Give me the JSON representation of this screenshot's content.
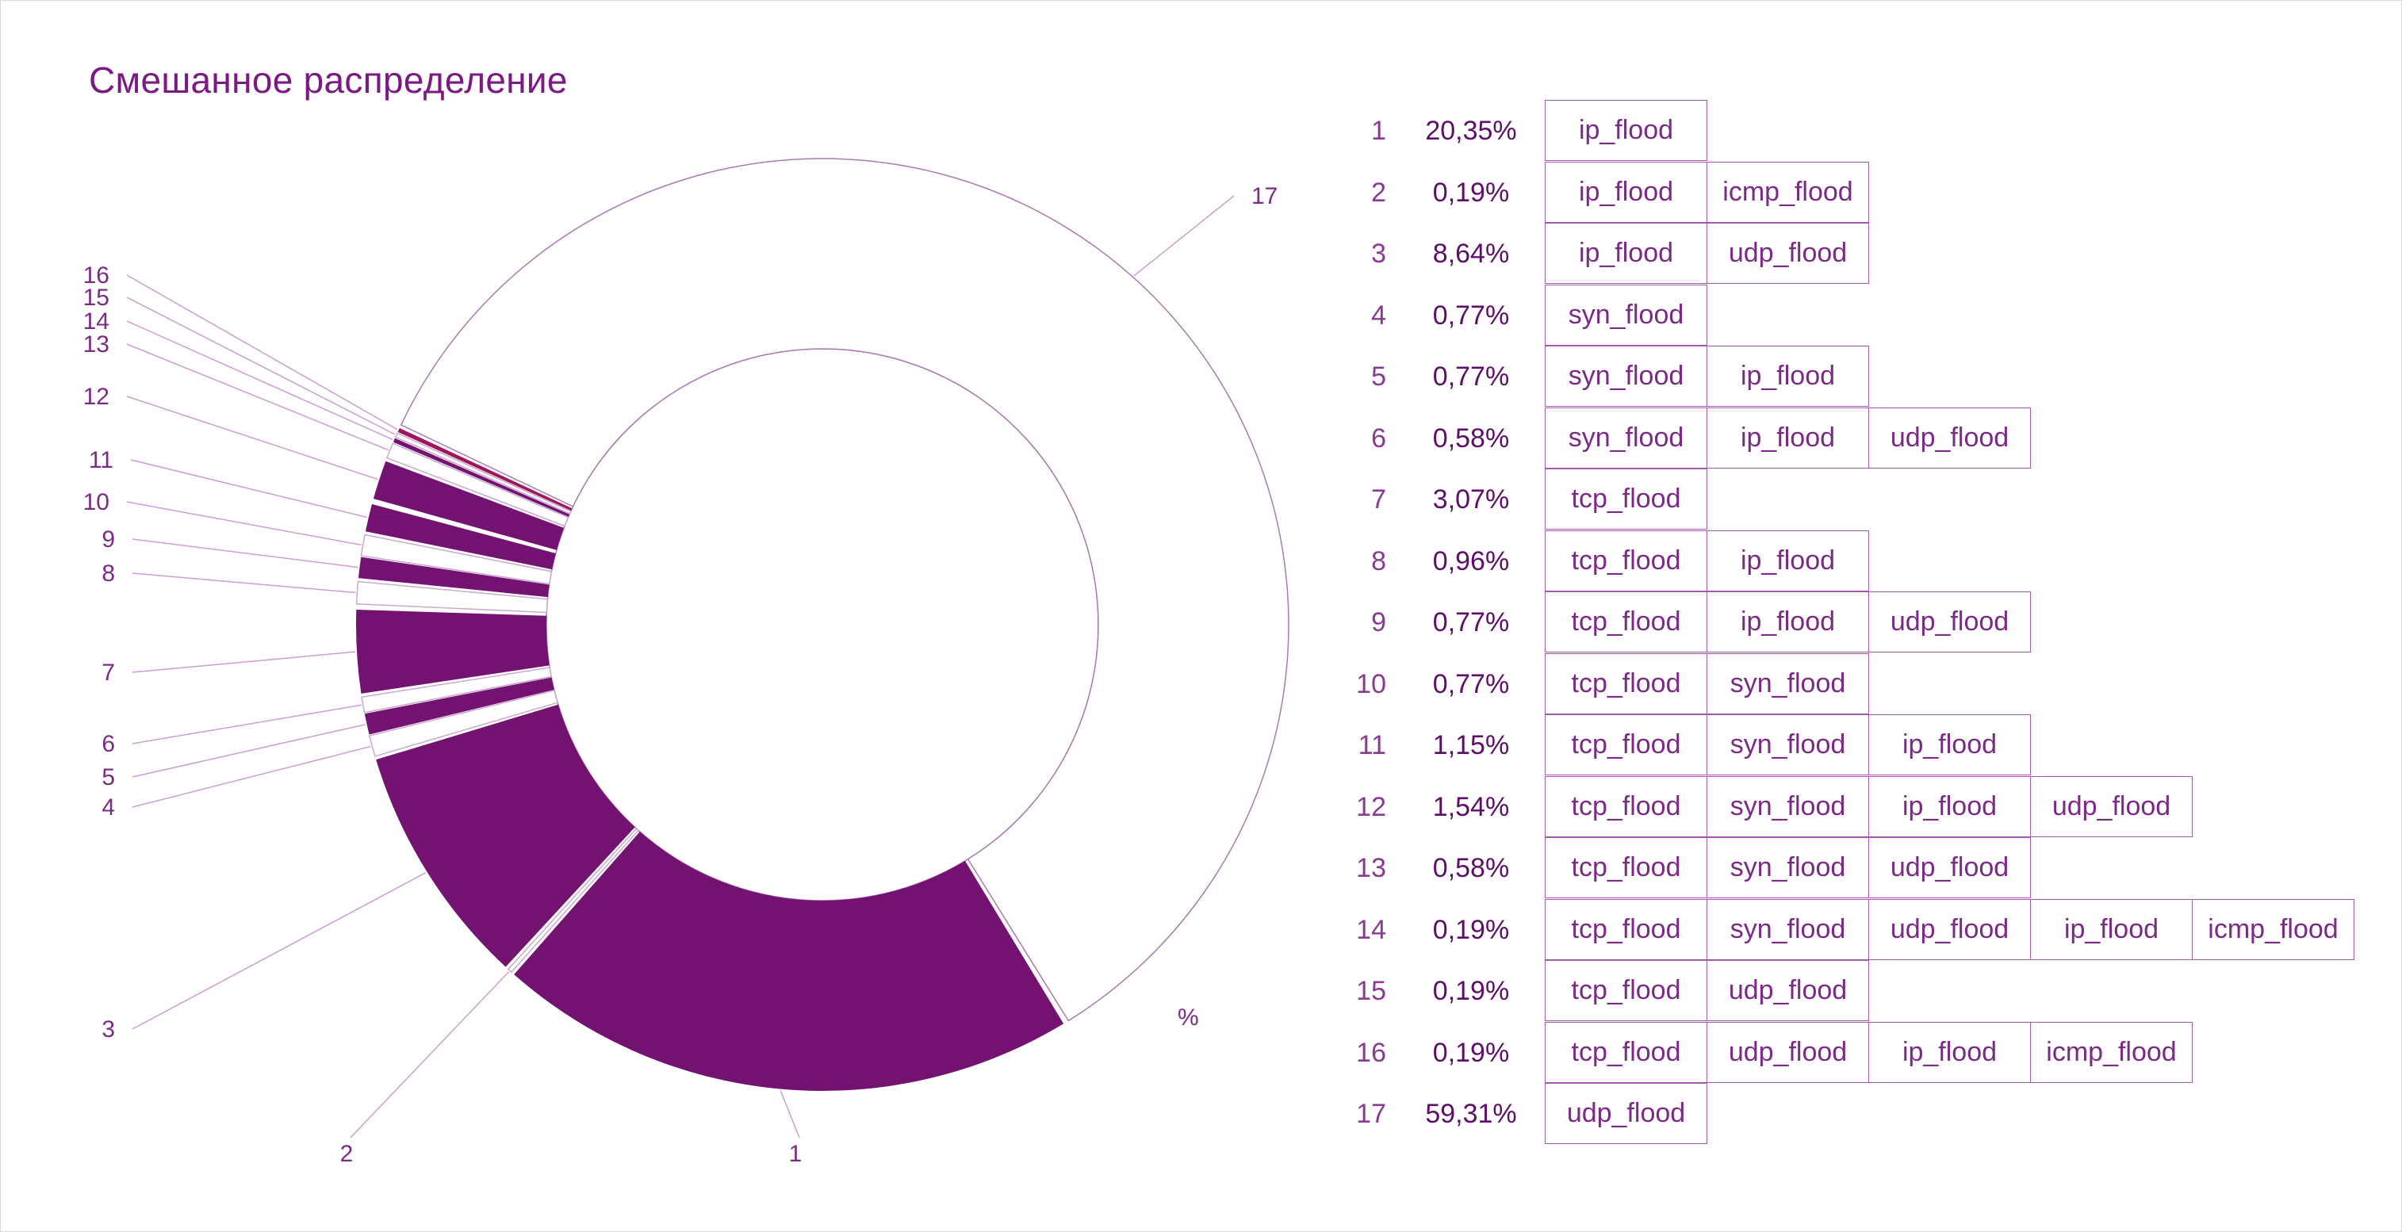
{
  "chart_data": {
    "type": "pie",
    "title": "Смешанное распределение",
    "unit_label": "%",
    "colors": {
      "filled": "#731270",
      "accent": "#a0155a",
      "outline": "#a97bb0",
      "text": "#7b2a86"
    },
    "slices": [
      {
        "id": "1",
        "percent": "20,35%",
        "value": 20.35,
        "types": [
          "ip_flood"
        ]
      },
      {
        "id": "2",
        "percent": "0,19%",
        "value": 0.19,
        "types": [
          "ip_flood",
          "icmp_flood"
        ]
      },
      {
        "id": "3",
        "percent": "8,64%",
        "value": 8.64,
        "types": [
          "ip_flood",
          "udp_flood"
        ]
      },
      {
        "id": "4",
        "percent": "0,77%",
        "value": 0.77,
        "types": [
          "syn_flood"
        ]
      },
      {
        "id": "5",
        "percent": "0,77%",
        "value": 0.77,
        "types": [
          "syn_flood",
          "ip_flood"
        ]
      },
      {
        "id": "6",
        "percent": "0,58%",
        "value": 0.58,
        "types": [
          "syn_flood",
          "ip_flood",
          "udp_flood"
        ]
      },
      {
        "id": "7",
        "percent": "3,07%",
        "value": 3.07,
        "types": [
          "tcp_flood"
        ]
      },
      {
        "id": "8",
        "percent": "0,96%",
        "value": 0.96,
        "types": [
          "tcp_flood",
          "ip_flood"
        ]
      },
      {
        "id": "9",
        "percent": "0,77%",
        "value": 0.77,
        "types": [
          "tcp_flood",
          "ip_flood",
          "udp_flood"
        ]
      },
      {
        "id": "10",
        "percent": "0,77%",
        "value": 0.77,
        "types": [
          "tcp_flood",
          "syn_flood"
        ]
      },
      {
        "id": "11",
        "percent": "1,15%",
        "value": 1.15,
        "types": [
          "tcp_flood",
          "syn_flood",
          "ip_flood"
        ]
      },
      {
        "id": "12",
        "percent": "1,54%",
        "value": 1.54,
        "types": [
          "tcp_flood",
          "syn_flood",
          "ip_flood",
          "udp_flood"
        ]
      },
      {
        "id": "13",
        "percent": "0,58%",
        "value": 0.58,
        "types": [
          "tcp_flood",
          "syn_flood",
          "udp_flood"
        ]
      },
      {
        "id": "14",
        "percent": "0,19%",
        "value": 0.19,
        "types": [
          "tcp_flood",
          "syn_flood",
          "udp_flood",
          "ip_flood",
          "icmp_flood"
        ]
      },
      {
        "id": "15",
        "percent": "0,19%",
        "value": 0.19,
        "types": [
          "tcp_flood",
          "udp_flood"
        ]
      },
      {
        "id": "16",
        "percent": "0,19%",
        "value": 0.19,
        "types": [
          "tcp_flood",
          "udp_flood",
          "ip_flood",
          "icmp_flood"
        ]
      },
      {
        "id": "17",
        "percent": "59,31%",
        "value": 59.31,
        "types": [
          "udp_flood"
        ]
      }
    ]
  }
}
